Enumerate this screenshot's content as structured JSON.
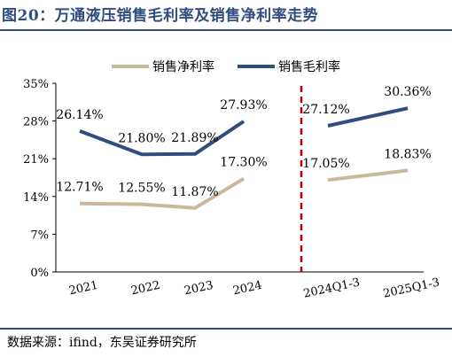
{
  "header": {
    "title": "图20：万通液压销售毛利率及销售净利率走势"
  },
  "footer": {
    "source": "数据来源：ifind，东吴证券研究所"
  },
  "chart_data": {
    "type": "line",
    "title": "图20：万通液压销售毛利率及销售净利率走势",
    "xlabel": "",
    "ylabel": "",
    "categories": [
      "2021",
      "2022",
      "2023",
      "2024",
      "2024Q1-3",
      "2025Q1-3"
    ],
    "yticks": [
      "0%",
      "7%",
      "14%",
      "21%",
      "28%",
      "35%"
    ],
    "ylim": [
      0,
      35
    ],
    "legend_position": "top-center",
    "grid": false,
    "series": [
      {
        "name": "销售净利率",
        "color": "#c9b99a",
        "values": [
          12.71,
          12.55,
          11.87,
          17.3,
          17.05,
          18.83
        ],
        "labels": [
          "12.71%",
          "12.55%",
          "11.87%",
          "17.30%",
          "17.05%",
          "18.83%"
        ]
      },
      {
        "name": "销售毛利率",
        "color": "#2f4d7e",
        "values": [
          26.14,
          21.8,
          21.89,
          27.93,
          27.12,
          30.36
        ],
        "labels": [
          "26.14%",
          "21.80%",
          "21.89%",
          "27.93%",
          "27.12%",
          "30.36%"
        ]
      }
    ],
    "segments": [
      [
        0,
        3
      ],
      [
        4,
        5
      ]
    ],
    "divider": {
      "between": [
        3,
        4
      ],
      "color": "#c00000",
      "style": "dashed"
    }
  }
}
